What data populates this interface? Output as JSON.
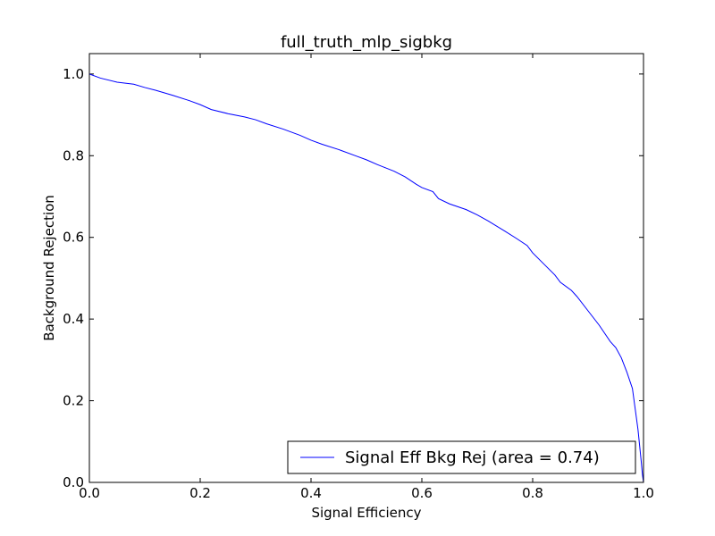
{
  "chart_data": {
    "type": "line",
    "title": "full_truth_mlp_sigbkg",
    "xlabel": "Signal Efficiency",
    "ylabel": "Background Rejection",
    "xlim": [
      0.0,
      1.0
    ],
    "ylim": [
      0.0,
      1.05
    ],
    "x_ticks": [
      0.0,
      0.2,
      0.4,
      0.6,
      0.8,
      1.0
    ],
    "x_tick_labels": [
      "0.0",
      "0.2",
      "0.4",
      "0.6",
      "0.8",
      "1.0"
    ],
    "y_ticks": [
      0.0,
      0.2,
      0.4,
      0.6,
      0.8,
      1.0
    ],
    "y_tick_labels": [
      "0.0",
      "0.2",
      "0.4",
      "0.6",
      "0.8",
      "1.0"
    ],
    "grid": false,
    "legend_position": "bottom-right",
    "series": [
      {
        "name": "Signal Eff Bkg Rej (area = 0.74)",
        "color": "#0000ff",
        "x": [
          0.0,
          0.02,
          0.05,
          0.08,
          0.1,
          0.12,
          0.15,
          0.18,
          0.2,
          0.22,
          0.25,
          0.28,
          0.3,
          0.32,
          0.35,
          0.38,
          0.4,
          0.42,
          0.45,
          0.48,
          0.5,
          0.52,
          0.55,
          0.57,
          0.59,
          0.6,
          0.62,
          0.63,
          0.65,
          0.68,
          0.7,
          0.72,
          0.75,
          0.77,
          0.79,
          0.8,
          0.82,
          0.84,
          0.85,
          0.87,
          0.88,
          0.9,
          0.92,
          0.94,
          0.95,
          0.96,
          0.97,
          0.98,
          0.985,
          0.99,
          0.993,
          0.996,
          0.998,
          1.0
        ],
        "y": [
          1.0,
          0.99,
          0.98,
          0.975,
          0.967,
          0.96,
          0.948,
          0.935,
          0.925,
          0.913,
          0.903,
          0.895,
          0.888,
          0.878,
          0.865,
          0.85,
          0.838,
          0.828,
          0.815,
          0.8,
          0.79,
          0.778,
          0.762,
          0.748,
          0.73,
          0.722,
          0.712,
          0.695,
          0.682,
          0.668,
          0.655,
          0.64,
          0.615,
          0.598,
          0.58,
          0.562,
          0.535,
          0.508,
          0.49,
          0.47,
          0.455,
          0.42,
          0.385,
          0.345,
          0.33,
          0.305,
          0.27,
          0.23,
          0.18,
          0.13,
          0.09,
          0.05,
          0.02,
          0.0
        ]
      }
    ]
  }
}
